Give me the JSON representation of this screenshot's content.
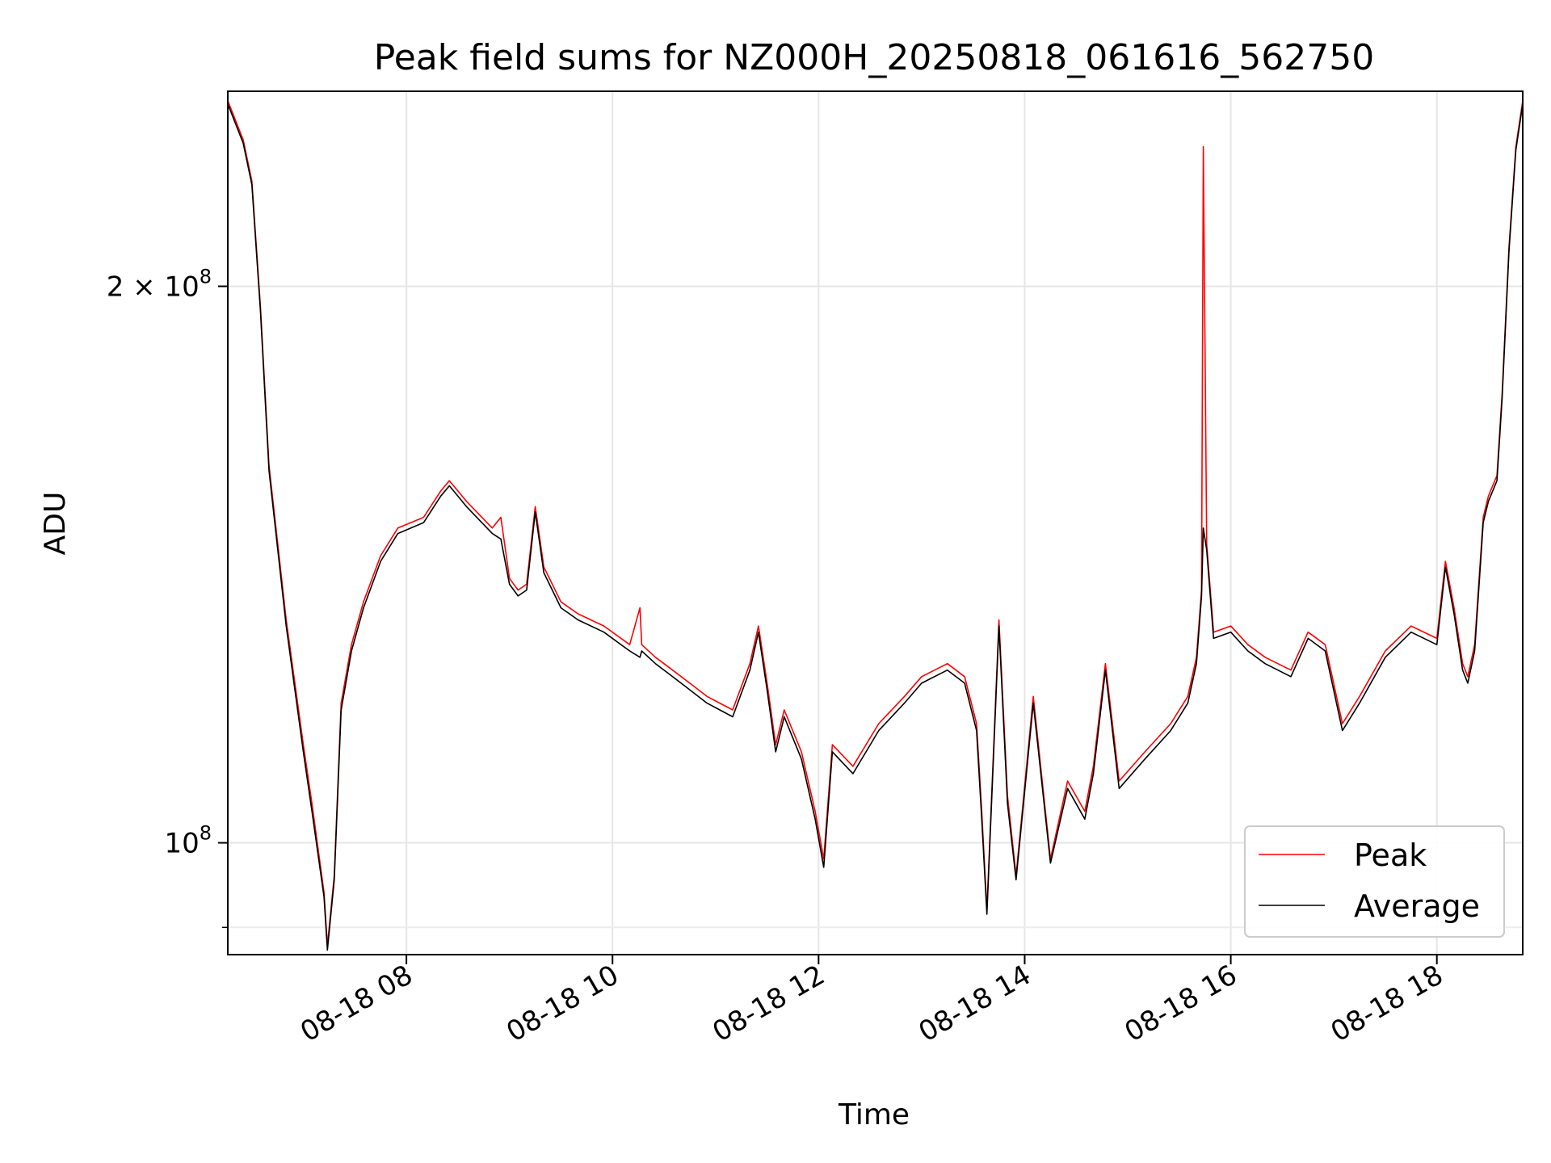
{
  "chart_data": {
    "type": "line",
    "title": "Peak field sums for NZ000H_20250818_061616_562750",
    "xlabel": "Time",
    "ylabel": "ADU",
    "yscale": "log",
    "xlim": [
      "2025-08-18T06:16",
      "2025-08-18T18:50"
    ],
    "ylim": [
      87000000,
      255000000
    ],
    "grid": true,
    "legend_position": "lower right",
    "x_ticks": [
      {
        "value": "2025-08-18T08:00",
        "label": "08-18 08"
      },
      {
        "value": "2025-08-18T10:00",
        "label": "08-18 10"
      },
      {
        "value": "2025-08-18T12:00",
        "label": "08-18 12"
      },
      {
        "value": "2025-08-18T14:00",
        "label": "08-18 14"
      },
      {
        "value": "2025-08-18T16:00",
        "label": "08-18 16"
      },
      {
        "value": "2025-08-18T18:00",
        "label": "08-18 18"
      }
    ],
    "y_ticks": [
      {
        "value": 100000000,
        "base": "10",
        "exp": "8",
        "mult": ""
      },
      {
        "value": 200000000,
        "base": "10",
        "exp": "8",
        "mult": "2 × "
      }
    ],
    "series": [
      {
        "name": "Peak",
        "color": "#ff0000",
        "x": [
          "2025-08-18T06:16",
          "2025-08-18T06:25",
          "2025-08-18T06:30",
          "2025-08-18T06:35",
          "2025-08-18T06:40",
          "2025-08-18T06:50",
          "2025-08-18T07:00",
          "2025-08-18T07:05",
          "2025-08-18T07:12",
          "2025-08-18T07:14",
          "2025-08-18T07:18",
          "2025-08-18T07:22",
          "2025-08-18T07:28",
          "2025-08-18T07:35",
          "2025-08-18T07:45",
          "2025-08-18T07:55",
          "2025-08-18T08:10",
          "2025-08-18T08:20",
          "2025-08-18T08:25",
          "2025-08-18T08:35",
          "2025-08-18T08:50",
          "2025-08-18T08:55",
          "2025-08-18T09:00",
          "2025-08-18T09:05",
          "2025-08-18T09:10",
          "2025-08-18T09:15",
          "2025-08-18T09:20",
          "2025-08-18T09:30",
          "2025-08-18T09:40",
          "2025-08-18T09:55",
          "2025-08-18T10:10",
          "2025-08-18T10:16",
          "2025-08-18T10:17",
          "2025-08-18T10:25",
          "2025-08-18T10:35",
          "2025-08-18T10:45",
          "2025-08-18T10:55",
          "2025-08-18T11:10",
          "2025-08-18T11:20",
          "2025-08-18T11:25",
          "2025-08-18T11:30",
          "2025-08-18T11:35",
          "2025-08-18T11:40",
          "2025-08-18T11:50",
          "2025-08-18T11:58",
          "2025-08-18T12:03",
          "2025-08-18T12:08",
          "2025-08-18T12:20",
          "2025-08-18T12:35",
          "2025-08-18T12:50",
          "2025-08-18T13:00",
          "2025-08-18T13:15",
          "2025-08-18T13:25",
          "2025-08-18T13:32",
          "2025-08-18T13:35",
          "2025-08-18T13:38",
          "2025-08-18T13:45",
          "2025-08-18T13:50",
          "2025-08-18T13:55",
          "2025-08-18T14:05",
          "2025-08-18T14:15",
          "2025-08-18T14:25",
          "2025-08-18T14:35",
          "2025-08-18T14:40",
          "2025-08-18T14:47",
          "2025-08-18T14:55",
          "2025-08-18T15:10",
          "2025-08-18T15:25",
          "2025-08-18T15:35",
          "2025-08-18T15:40",
          "2025-08-18T15:43",
          "2025-08-18T15:44",
          "2025-08-18T15:46",
          "2025-08-18T15:50",
          "2025-08-18T16:00",
          "2025-08-18T16:10",
          "2025-08-18T16:20",
          "2025-08-18T16:35",
          "2025-08-18T16:45",
          "2025-08-18T16:55",
          "2025-08-18T17:05",
          "2025-08-18T17:15",
          "2025-08-18T17:30",
          "2025-08-18T17:45",
          "2025-08-18T18:00",
          "2025-08-18T18:05",
          "2025-08-18T18:10",
          "2025-08-18T18:15",
          "2025-08-18T18:18",
          "2025-08-18T18:22",
          "2025-08-18T18:27",
          "2025-08-18T18:30",
          "2025-08-18T18:35",
          "2025-08-18T18:38",
          "2025-08-18T18:42",
          "2025-08-18T18:46",
          "2025-08-18T18:50"
        ],
        "y": [
          252000000,
          240000000,
          228000000,
          195000000,
          160000000,
          132000000,
          113000000,
          105000000,
          94000000,
          88000000,
          96000000,
          119000000,
          128000000,
          135000000,
          143000000,
          148000000,
          150000000,
          155000000,
          157000000,
          153000000,
          148000000,
          150000000,
          139000000,
          137000000,
          138000000,
          152000000,
          141000000,
          135000000,
          133000000,
          131000000,
          128000000,
          134000000,
          128000000,
          126000000,
          124000000,
          122000000,
          120000000,
          118000000,
          125000000,
          131000000,
          122000000,
          113000000,
          118000000,
          112000000,
          104000000,
          98000000,
          113000000,
          110000000,
          116000000,
          120000000,
          123000000,
          125000000,
          123000000,
          116000000,
          104000000,
          92000000,
          132000000,
          106000000,
          96000000,
          120000000,
          98000000,
          108000000,
          104000000,
          110000000,
          125000000,
          108000000,
          112000000,
          116000000,
          120000000,
          126000000,
          137000000,
          238000000,
          145000000,
          130000000,
          131000000,
          128000000,
          126000000,
          124000000,
          130000000,
          128000000,
          116000000,
          120000000,
          127000000,
          131000000,
          129000000,
          142000000,
          134000000,
          125000000,
          123000000,
          128000000,
          150000000,
          154000000,
          158000000,
          175000000,
          210000000,
          238000000,
          252000000
        ]
      },
      {
        "name": "Average",
        "color": "#000000",
        "x": [
          "2025-08-18T06:16",
          "2025-08-18T06:25",
          "2025-08-18T06:30",
          "2025-08-18T06:35",
          "2025-08-18T06:40",
          "2025-08-18T06:50",
          "2025-08-18T07:00",
          "2025-08-18T07:05",
          "2025-08-18T07:12",
          "2025-08-18T07:14",
          "2025-08-18T07:18",
          "2025-08-18T07:22",
          "2025-08-18T07:28",
          "2025-08-18T07:35",
          "2025-08-18T07:45",
          "2025-08-18T07:55",
          "2025-08-18T08:10",
          "2025-08-18T08:20",
          "2025-08-18T08:25",
          "2025-08-18T08:35",
          "2025-08-18T08:50",
          "2025-08-18T08:55",
          "2025-08-18T09:00",
          "2025-08-18T09:05",
          "2025-08-18T09:10",
          "2025-08-18T09:15",
          "2025-08-18T09:20",
          "2025-08-18T09:30",
          "2025-08-18T09:40",
          "2025-08-18T09:55",
          "2025-08-18T10:10",
          "2025-08-18T10:16",
          "2025-08-18T10:17",
          "2025-08-18T10:25",
          "2025-08-18T10:35",
          "2025-08-18T10:45",
          "2025-08-18T10:55",
          "2025-08-18T11:10",
          "2025-08-18T11:20",
          "2025-08-18T11:25",
          "2025-08-18T11:30",
          "2025-08-18T11:35",
          "2025-08-18T11:40",
          "2025-08-18T11:50",
          "2025-08-18T11:58",
          "2025-08-18T12:03",
          "2025-08-18T12:08",
          "2025-08-18T12:20",
          "2025-08-18T12:35",
          "2025-08-18T12:50",
          "2025-08-18T13:00",
          "2025-08-18T13:15",
          "2025-08-18T13:25",
          "2025-08-18T13:32",
          "2025-08-18T13:35",
          "2025-08-18T13:38",
          "2025-08-18T13:45",
          "2025-08-18T13:50",
          "2025-08-18T13:55",
          "2025-08-18T14:05",
          "2025-08-18T14:15",
          "2025-08-18T14:25",
          "2025-08-18T14:35",
          "2025-08-18T14:40",
          "2025-08-18T14:47",
          "2025-08-18T14:55",
          "2025-08-18T15:10",
          "2025-08-18T15:25",
          "2025-08-18T15:35",
          "2025-08-18T15:40",
          "2025-08-18T15:43",
          "2025-08-18T15:44",
          "2025-08-18T15:46",
          "2025-08-18T15:50",
          "2025-08-18T16:00",
          "2025-08-18T16:10",
          "2025-08-18T16:20",
          "2025-08-18T16:35",
          "2025-08-18T16:45",
          "2025-08-18T16:55",
          "2025-08-18T17:05",
          "2025-08-18T17:15",
          "2025-08-18T17:30",
          "2025-08-18T17:45",
          "2025-08-18T18:00",
          "2025-08-18T18:05",
          "2025-08-18T18:10",
          "2025-08-18T18:15",
          "2025-08-18T18:18",
          "2025-08-18T18:22",
          "2025-08-18T18:27",
          "2025-08-18T18:30",
          "2025-08-18T18:35",
          "2025-08-18T18:38",
          "2025-08-18T18:42",
          "2025-08-18T18:46",
          "2025-08-18T18:50"
        ],
        "y": [
          251000000,
          239000000,
          227000000,
          194000000,
          159000000,
          131000000,
          112000000,
          104000000,
          93500000,
          87500000,
          95500000,
          118000000,
          127000000,
          134000000,
          142000000,
          147000000,
          149000000,
          154000000,
          156000000,
          152000000,
          147000000,
          146000000,
          138000000,
          136000000,
          137000000,
          151000000,
          140000000,
          134000000,
          132000000,
          130000000,
          127000000,
          126000000,
          127000000,
          125000000,
          123000000,
          121000000,
          119000000,
          117000000,
          124000000,
          130000000,
          121000000,
          112000000,
          117000000,
          111000000,
          103000000,
          97000000,
          112000000,
          109000000,
          115000000,
          119000000,
          122000000,
          124000000,
          122000000,
          115000000,
          103000000,
          91500000,
          131000000,
          105000000,
          95500000,
          119000000,
          97500000,
          107000000,
          103000000,
          109000000,
          124000000,
          107000000,
          111000000,
          115000000,
          119000000,
          125000000,
          136000000,
          148000000,
          144000000,
          129000000,
          130000000,
          127000000,
          125000000,
          123000000,
          129000000,
          127000000,
          115000000,
          119000000,
          126000000,
          130000000,
          128000000,
          141000000,
          133000000,
          124000000,
          122000000,
          127000000,
          149000000,
          153000000,
          157000000,
          174000000,
          209000000,
          237000000,
          251000000
        ]
      }
    ]
  }
}
